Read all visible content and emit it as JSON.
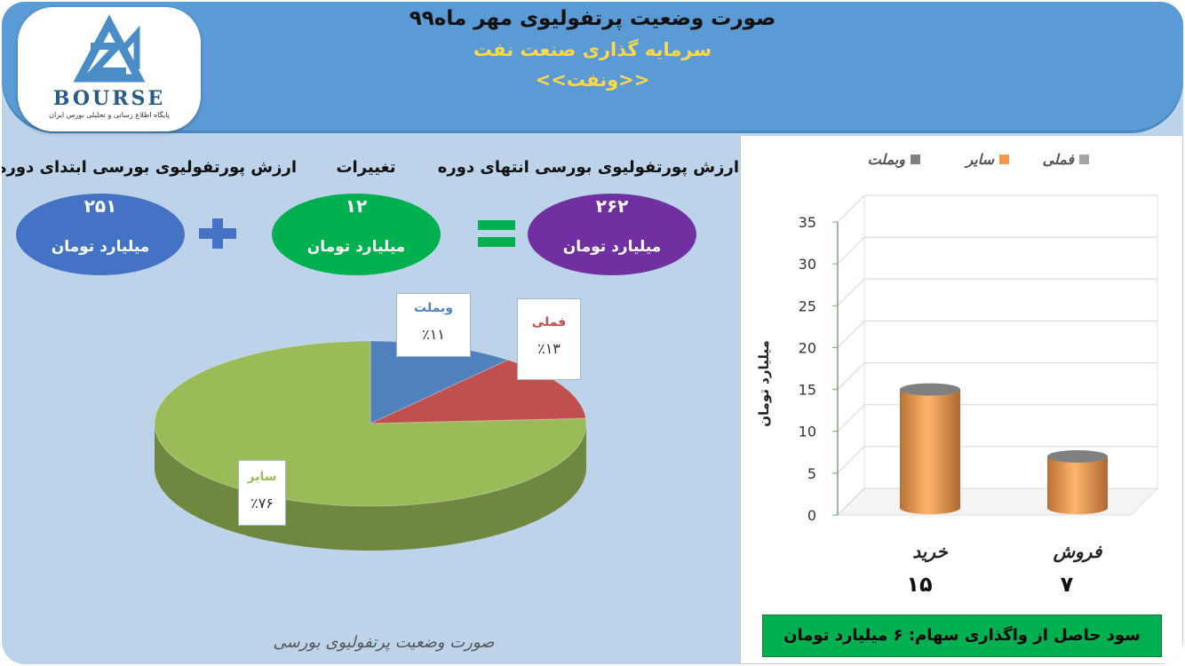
{
  "header": {
    "title": "صورت وضعیت پرتفولیوی مهر ماه۹۹",
    "subtitle": "سرمایه گذاری صنعت نفت",
    "symbol": "<<ونفت>>"
  },
  "logo": {
    "word": "BOURSE",
    "tagline": "پایگاه اطلاع رسانی و تحلیلی بورس ایران"
  },
  "portfolio": {
    "start": {
      "label": "ارزش پورتفولیوی بورسی ابتدای دوره",
      "value": "۲۵۱",
      "unit": "میلیارد تومان",
      "color": "#4472c4"
    },
    "change": {
      "label": "تغییرات",
      "value": "۱۲",
      "unit": "میلیارد تومان",
      "color": "#00b050"
    },
    "end": {
      "label": "ارزش پورتفولیوی بورسی انتهای دوره",
      "value": "۲۶۲",
      "unit": "میلیارد تومان",
      "color": "#7030a0"
    }
  },
  "chart_data": [
    {
      "type": "pie",
      "categories": [
        "وبملت",
        "فملی",
        "سایر"
      ],
      "values": [
        11,
        13,
        76
      ],
      "labels": [
        "٪۱۱",
        "٪۱۳",
        "٪۷۶"
      ],
      "colors": [
        "#4f81bd",
        "#c0504d",
        "#9bbb59"
      ],
      "title": "صورت وضعیت پرتفولیوی بورسی"
    },
    {
      "type": "bar",
      "categories": [
        "خرید",
        "فروش"
      ],
      "category_values": [
        "۱۵",
        "۷"
      ],
      "series": [
        {
          "name": "سایر",
          "values": [
            15,
            7
          ],
          "color": "#f79646"
        }
      ],
      "legend": [
        "فملی",
        "سایر",
        "وبملت"
      ],
      "legend_colors": [
        "#a5a5a5",
        "#f79646",
        "#7f7f7f"
      ],
      "ylabel": "میلیارد تومان",
      "ylim": [
        0,
        35
      ],
      "yticks": [
        "0",
        "5",
        "10",
        "15",
        "20",
        "25",
        "30",
        "35"
      ],
      "legend_position": "top"
    }
  ],
  "profit_text": "سود حاصل از واگذاری سهام: ۶ میلیارد تومان",
  "footer_text": "صورت وضعیت پرتفولیوی بورسی"
}
